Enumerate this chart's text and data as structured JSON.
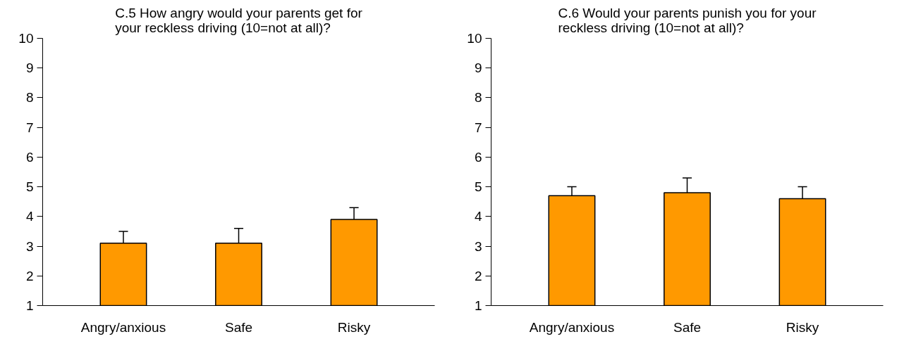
{
  "chart_data": [
    {
      "type": "bar",
      "title": "C.5 How angry would your parents get for your reckless driving (10=not at all)?",
      "categories": [
        "Angry/anxious",
        "Safe",
        "Risky"
      ],
      "values": [
        3.1,
        3.1,
        3.9
      ],
      "errors": [
        0.4,
        0.5,
        0.4
      ],
      "color": "#ff9900",
      "ylim": [
        1,
        10
      ],
      "yticks": [
        1,
        2,
        3,
        4,
        5,
        6,
        7,
        8,
        9,
        10
      ],
      "grid": false
    },
    {
      "type": "bar",
      "title": "C.6 Would your parents punish you for your reckless driving (10=not at all)?",
      "categories": [
        "Angry/anxious",
        "Safe",
        "Risky"
      ],
      "values": [
        4.7,
        4.8,
        4.6
      ],
      "errors": [
        0.3,
        0.5,
        0.4
      ],
      "color": "#ff9900",
      "ylim": [
        1,
        10
      ],
      "yticks": [
        1,
        2,
        3,
        4,
        5,
        6,
        7,
        8,
        9,
        10
      ],
      "grid": false
    }
  ]
}
